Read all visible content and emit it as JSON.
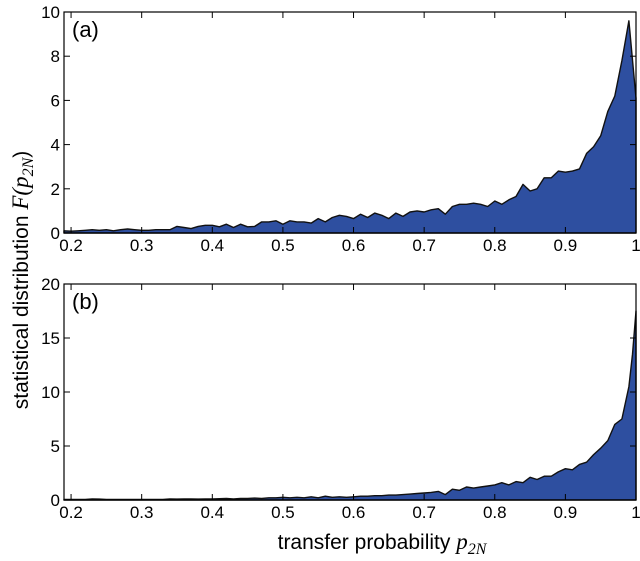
{
  "chart_data": [
    {
      "type": "area",
      "panel_label": "(a)",
      "xlim": [
        0.19,
        1.0
      ],
      "ylim": [
        0,
        10
      ],
      "xticks": [
        0.2,
        0.3,
        0.4,
        0.5,
        0.6,
        0.7,
        0.8,
        0.9,
        1
      ],
      "xtick_labels": [
        "0.2",
        "0.3",
        "0.4",
        "0.5",
        "0.6",
        "0.7",
        "0.8",
        "0.9",
        "1"
      ],
      "yticks": [
        0,
        2,
        4,
        6,
        8,
        10
      ],
      "ytick_labels": [
        "0",
        "2",
        "4",
        "6",
        "8",
        "10"
      ],
      "fill_color": "#2e4fa0",
      "series": [
        {
          "x": [
            0.19,
            0.2,
            0.21,
            0.22,
            0.23,
            0.24,
            0.25,
            0.26,
            0.27,
            0.28,
            0.29,
            0.3,
            0.31,
            0.32,
            0.33,
            0.34,
            0.35,
            0.36,
            0.37,
            0.38,
            0.39,
            0.4,
            0.41,
            0.42,
            0.43,
            0.44,
            0.45,
            0.46,
            0.47,
            0.48,
            0.49,
            0.5,
            0.51,
            0.52,
            0.53,
            0.54,
            0.55,
            0.56,
            0.57,
            0.58,
            0.59,
            0.6,
            0.61,
            0.62,
            0.63,
            0.64,
            0.65,
            0.66,
            0.67,
            0.68,
            0.69,
            0.7,
            0.71,
            0.72,
            0.73,
            0.74,
            0.75,
            0.76,
            0.77,
            0.78,
            0.79,
            0.8,
            0.81,
            0.82,
            0.83,
            0.84,
            0.85,
            0.86,
            0.87,
            0.88,
            0.89,
            0.9,
            0.91,
            0.92,
            0.93,
            0.94,
            0.95,
            0.96,
            0.97,
            0.98,
            0.99,
            1.0
          ],
          "y": [
            0.1,
            0.08,
            0.1,
            0.12,
            0.15,
            0.12,
            0.15,
            0.1,
            0.15,
            0.18,
            0.15,
            0.12,
            0.12,
            0.15,
            0.15,
            0.15,
            0.3,
            0.25,
            0.2,
            0.3,
            0.35,
            0.35,
            0.28,
            0.4,
            0.25,
            0.4,
            0.28,
            0.3,
            0.5,
            0.5,
            0.55,
            0.4,
            0.55,
            0.5,
            0.5,
            0.45,
            0.65,
            0.5,
            0.7,
            0.8,
            0.75,
            0.65,
            0.85,
            0.7,
            0.9,
            0.8,
            0.65,
            0.9,
            0.75,
            0.95,
            1.0,
            0.95,
            1.05,
            1.1,
            0.85,
            1.2,
            1.3,
            1.3,
            1.35,
            1.3,
            1.2,
            1.45,
            1.3,
            1.5,
            1.65,
            2.2,
            1.9,
            2.0,
            2.5,
            2.5,
            2.8,
            2.75,
            2.8,
            2.9,
            3.6,
            3.9,
            4.4,
            5.5,
            6.2,
            7.8,
            9.6,
            6.1
          ]
        }
      ]
    },
    {
      "type": "area",
      "panel_label": "(b)",
      "xlim": [
        0.19,
        1.0
      ],
      "ylim": [
        0,
        20
      ],
      "xticks": [
        0.2,
        0.3,
        0.4,
        0.5,
        0.6,
        0.7,
        0.8,
        0.9,
        1
      ],
      "xtick_labels": [
        "0.2",
        "0.3",
        "0.4",
        "0.5",
        "0.6",
        "0.7",
        "0.8",
        "0.9",
        "1"
      ],
      "yticks": [
        0,
        5,
        10,
        15,
        20
      ],
      "ytick_labels": [
        "0",
        "5",
        "10",
        "15",
        "20"
      ],
      "fill_color": "#2e4fa0",
      "series": [
        {
          "x": [
            0.19,
            0.2,
            0.21,
            0.22,
            0.23,
            0.24,
            0.25,
            0.26,
            0.27,
            0.28,
            0.29,
            0.3,
            0.31,
            0.32,
            0.33,
            0.34,
            0.35,
            0.36,
            0.37,
            0.38,
            0.39,
            0.4,
            0.41,
            0.42,
            0.43,
            0.44,
            0.45,
            0.46,
            0.47,
            0.48,
            0.49,
            0.5,
            0.51,
            0.52,
            0.53,
            0.54,
            0.55,
            0.56,
            0.57,
            0.58,
            0.59,
            0.6,
            0.61,
            0.62,
            0.63,
            0.64,
            0.65,
            0.66,
            0.67,
            0.68,
            0.69,
            0.7,
            0.71,
            0.72,
            0.73,
            0.74,
            0.75,
            0.76,
            0.77,
            0.78,
            0.79,
            0.8,
            0.81,
            0.82,
            0.83,
            0.84,
            0.85,
            0.86,
            0.87,
            0.88,
            0.89,
            0.9,
            0.91,
            0.92,
            0.93,
            0.94,
            0.95,
            0.96,
            0.97,
            0.98,
            0.99,
            0.995,
            1.0
          ],
          "y": [
            0.05,
            0.05,
            0.05,
            0.05,
            0.1,
            0.08,
            0.05,
            0.05,
            0.05,
            0.05,
            0.05,
            0.05,
            0.05,
            0.05,
            0.05,
            0.1,
            0.08,
            0.1,
            0.1,
            0.08,
            0.1,
            0.1,
            0.12,
            0.15,
            0.1,
            0.15,
            0.15,
            0.18,
            0.15,
            0.2,
            0.2,
            0.25,
            0.2,
            0.25,
            0.2,
            0.3,
            0.2,
            0.35,
            0.25,
            0.3,
            0.25,
            0.3,
            0.35,
            0.35,
            0.4,
            0.4,
            0.45,
            0.45,
            0.5,
            0.55,
            0.6,
            0.65,
            0.7,
            0.8,
            0.5,
            1.0,
            0.9,
            1.2,
            1.1,
            1.2,
            1.3,
            1.4,
            1.6,
            1.4,
            1.7,
            1.6,
            2.1,
            1.9,
            2.2,
            2.2,
            2.6,
            2.9,
            2.8,
            3.3,
            3.5,
            4.2,
            4.8,
            5.5,
            7.0,
            7.5,
            10.5,
            13.5,
            17.5
          ]
        }
      ]
    }
  ],
  "ylabel_text": "statistical distribution ",
  "ylabel_func": "F",
  "ylabel_arg": "(p",
  "ylabel_sub": "2N",
  "ylabel_close": ")",
  "xlabel_text": "transfer probability ",
  "xlabel_var": "p",
  "xlabel_sub": "2N"
}
